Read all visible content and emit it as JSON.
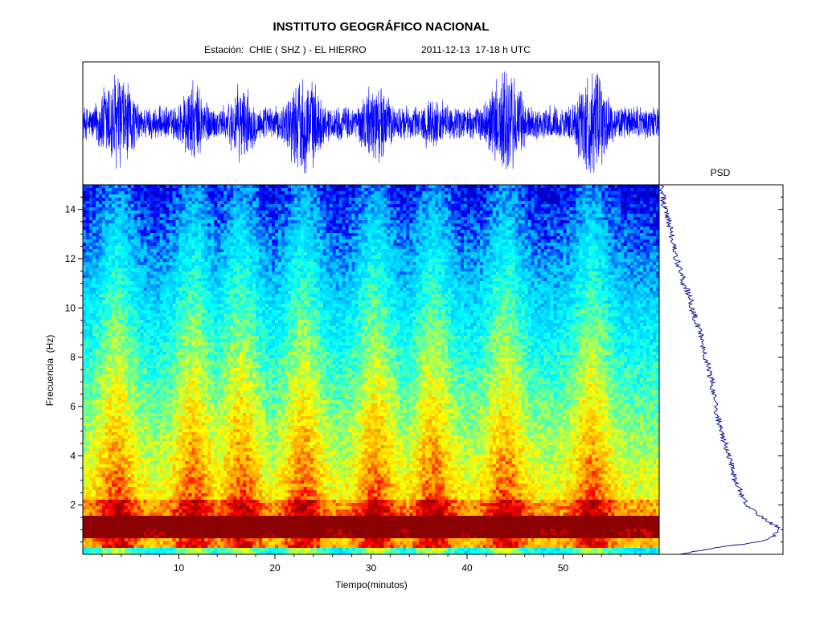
{
  "chart_data": [
    {
      "type": "line",
      "panel": "seismogram",
      "title": "INSTITUTO GEOGRÁFICO NACIONAL",
      "subtitle_station": "Estación:  CHIE ( SHZ ) - EL HIERRO",
      "subtitle_date": "2011-12-13  17-18 h UTC",
      "color": "#0000ff",
      "x": [
        0,
        60
      ],
      "xlim": [
        0,
        60
      ],
      "ylim": [
        -1,
        1
      ],
      "xlabel": "",
      "ylabel": "",
      "bursts": [
        {
          "center": 3.5,
          "width": 1.6,
          "amplitude": 0.95
        },
        {
          "center": 11.5,
          "width": 1.4,
          "amplitude": 0.72
        },
        {
          "center": 16.5,
          "width": 1.3,
          "amplitude": 0.68
        },
        {
          "center": 23.0,
          "width": 1.6,
          "amplitude": 0.9
        },
        {
          "center": 30.5,
          "width": 1.5,
          "amplitude": 0.72
        },
        {
          "center": 36.5,
          "width": 1.8,
          "amplitude": 0.45
        },
        {
          "center": 44.0,
          "width": 1.6,
          "amplitude": 1.0
        },
        {
          "center": 53.0,
          "width": 1.5,
          "amplitude": 0.95
        }
      ],
      "background_amplitude": 0.3
    },
    {
      "type": "heatmap",
      "panel": "spectrogram",
      "xlabel": "Tiempo(minutos)",
      "ylabel": "Frecuencia  (Hz)",
      "xlim": [
        0,
        60
      ],
      "ylim": [
        0,
        15
      ],
      "x_ticks": [
        10,
        20,
        30,
        40,
        50
      ],
      "y_ticks": [
        2,
        4,
        6,
        8,
        10,
        12,
        14
      ],
      "colormap": [
        "#00008b",
        "#0000ff",
        "#00bfff",
        "#00ffff",
        "#7fff7f",
        "#ffff00",
        "#ffa500",
        "#ff0000",
        "#8b0000"
      ],
      "burst_centers": [
        3.5,
        11.5,
        16.5,
        23.0,
        30.5,
        36.5,
        44.0,
        53.0
      ],
      "dominant_band_hz": [
        0.6,
        1.6
      ],
      "noise_band_hz": [
        1.6,
        2.2
      ]
    },
    {
      "type": "line",
      "panel": "psd",
      "title": "PSD",
      "color": "#00008b",
      "freq_hz": [
        0.0,
        0.3,
        0.5,
        0.8,
        1.0,
        1.3,
        1.6,
        2.0,
        2.5,
        3.0,
        3.5,
        4.0,
        4.5,
        5.0,
        5.5,
        6.0,
        6.5,
        7.0,
        7.5,
        8.0,
        8.5,
        9.0,
        9.5,
        10.0,
        10.5,
        11.0,
        11.5,
        12.0,
        12.5,
        13.0,
        13.5,
        14.0,
        14.5,
        15.0
      ],
      "level": [
        0.15,
        0.5,
        0.82,
        0.95,
        1.0,
        0.9,
        0.82,
        0.72,
        0.67,
        0.62,
        0.6,
        0.57,
        0.54,
        0.5,
        0.48,
        0.46,
        0.45,
        0.43,
        0.4,
        0.38,
        0.36,
        0.34,
        0.3,
        0.27,
        0.25,
        0.2,
        0.18,
        0.14,
        0.12,
        0.1,
        0.08,
        0.05,
        0.03,
        0.01
      ],
      "ylim": [
        0,
        15
      ],
      "xlim": [
        0,
        1
      ]
    }
  ]
}
